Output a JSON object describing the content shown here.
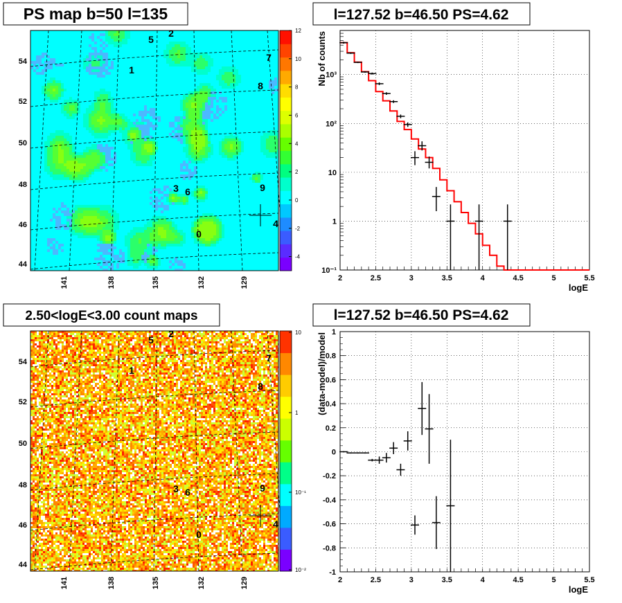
{
  "titles": {
    "map_top": "PS map b=50 l=135",
    "map_bottom": "2.50<logE<3.00 count maps",
    "spec_top": "l=127.52 b=46.50 PS=4.62",
    "spec_bottom": "l=127.52 b=46.50 PS=4.62"
  },
  "chart_data": [
    {
      "type": "heatmap",
      "title": "PS map b=50 l=135",
      "y_ticks": [
        "54",
        "52",
        "50",
        "48",
        "46",
        "44"
      ],
      "x_ticks": [
        "141",
        "138",
        "135",
        "132",
        "129"
      ],
      "colorbar_ticks": [
        "12",
        "10",
        "8",
        "6",
        "4",
        "2",
        "0",
        "-2",
        "-4"
      ],
      "colorbar_range": [
        -5,
        12
      ],
      "colorbar_colors": [
        "#7a00ff",
        "#5a2cff",
        "#3a5cff",
        "#1e8cff",
        "#00c8ff",
        "#00ffff",
        "#00ffcc",
        "#00ff80",
        "#33ff33",
        "#66ff00",
        "#aaff00",
        "#ddff00",
        "#ffff00",
        "#ffdd00",
        "#ffaa00",
        "#ff7700",
        "#ff4400",
        "#ff1100"
      ],
      "sources": [
        "1",
        "2",
        "3",
        "4",
        "5",
        "6",
        "7",
        "8",
        "9",
        "0"
      ],
      "marker": "+"
    },
    {
      "type": "line",
      "title": "l=127.52 b=46.50 PS=4.62",
      "xlabel": "logE",
      "ylabel": "Nb of counts",
      "xlim": [
        2,
        5.5
      ],
      "ylim": [
        0.1,
        8000
      ],
      "log_y": true,
      "x_ticks": [
        "2",
        "2.5",
        "3",
        "3.5",
        "4",
        "4.5",
        "5",
        "5.5"
      ],
      "y_ticks": [
        "10⁻¹",
        "1",
        "10",
        "10²",
        "10³"
      ],
      "grid": true,
      "series": [
        {
          "kind": "model_histogram",
          "color": "#ff0000",
          "x": [
            2.0,
            2.1,
            2.2,
            2.3,
            2.4,
            2.5,
            2.6,
            2.7,
            2.8,
            2.9,
            3.0,
            3.1,
            3.2,
            3.3,
            3.4,
            3.5,
            3.6,
            3.7,
            3.8,
            3.9,
            4.0,
            4.1,
            4.2,
            4.3,
            4.4,
            4.5,
            4.6,
            4.7,
            4.8,
            4.9,
            5.0,
            5.1,
            5.2,
            5.3,
            5.4
          ],
          "values": [
            4500,
            2800,
            1800,
            1150,
            750,
            450,
            290,
            180,
            110,
            75,
            48,
            30,
            20,
            12,
            7,
            4.2,
            2.5,
            1.5,
            0.9,
            0.55,
            0.32,
            0.2,
            0.12,
            0.1,
            0.1,
            0.1,
            0.1,
            0.1,
            0.1,
            0.1,
            0.1,
            0.1,
            0.1,
            0.1,
            0.1
          ]
        },
        {
          "kind": "data_points",
          "color": "#000000",
          "x": [
            2.05,
            2.15,
            2.25,
            2.35,
            2.45,
            2.55,
            2.65,
            2.75,
            2.85,
            2.95,
            3.05,
            3.15,
            3.25,
            3.35,
            3.55,
            3.95,
            4.35
          ],
          "values": [
            4500,
            2750,
            1780,
            1130,
            1050,
            650,
            410,
            280,
            140,
            95,
            20,
            35,
            16,
            3.2,
            1,
            1,
            1
          ],
          "err_low": [
            4300,
            2650,
            1720,
            1090,
            1000,
            610,
            385,
            262,
            128,
            85,
            14,
            28,
            12,
            1.6,
            0.1,
            0.1,
            0.1
          ],
          "err_high": [
            4700,
            2850,
            1840,
            1170,
            1100,
            690,
            435,
            298,
            152,
            105,
            27,
            43,
            21,
            5,
            2.2,
            2.2,
            2.2
          ]
        }
      ]
    },
    {
      "type": "heatmap",
      "title": "2.50<logE<3.00 count maps",
      "y_ticks": [
        "54",
        "52",
        "50",
        "48",
        "46",
        "44"
      ],
      "x_ticks": [
        "141",
        "138",
        "135",
        "132",
        "129"
      ],
      "colorbar_ticks": [
        "10",
        "1",
        "10⁻¹",
        "10⁻²"
      ],
      "log_scale": true,
      "sources": [
        "1",
        "2",
        "3",
        "4",
        "5",
        "6",
        "7",
        "8",
        "9",
        "0"
      ],
      "marker": "+"
    },
    {
      "type": "scatter",
      "title": "l=127.52 b=46.50 PS=4.62",
      "xlabel": "logE",
      "ylabel": "(data-model)/model",
      "xlim": [
        2,
        5.5
      ],
      "ylim": [
        -1,
        1
      ],
      "x_ticks": [
        "2",
        "2.5",
        "3",
        "3.5",
        "4",
        "4.5",
        "5",
        "5.5"
      ],
      "y_ticks": [
        "1",
        "0.8",
        "0.6",
        "0.4",
        "0.2",
        "0",
        "-0.2",
        "-0.4",
        "-0.6",
        "-0.8",
        "-1"
      ],
      "grid": true,
      "series": [
        {
          "kind": "residuals",
          "color": "#000000",
          "x": [
            2.05,
            2.15,
            2.25,
            2.35,
            2.45,
            2.55,
            2.65,
            2.75,
            2.85,
            2.95,
            3.05,
            3.15,
            3.25,
            3.35,
            3.55
          ],
          "values": [
            0.0,
            -0.01,
            -0.01,
            -0.01,
            -0.07,
            -0.07,
            -0.05,
            0.03,
            -0.15,
            0.09,
            -0.61,
            0.36,
            0.19,
            -0.59,
            -0.45
          ],
          "errors": [
            0.005,
            0.005,
            0.005,
            0.005,
            0.01,
            0.03,
            0.04,
            0.05,
            0.05,
            0.08,
            0.08,
            0.22,
            0.29,
            0.22,
            0.55
          ]
        }
      ]
    }
  ]
}
